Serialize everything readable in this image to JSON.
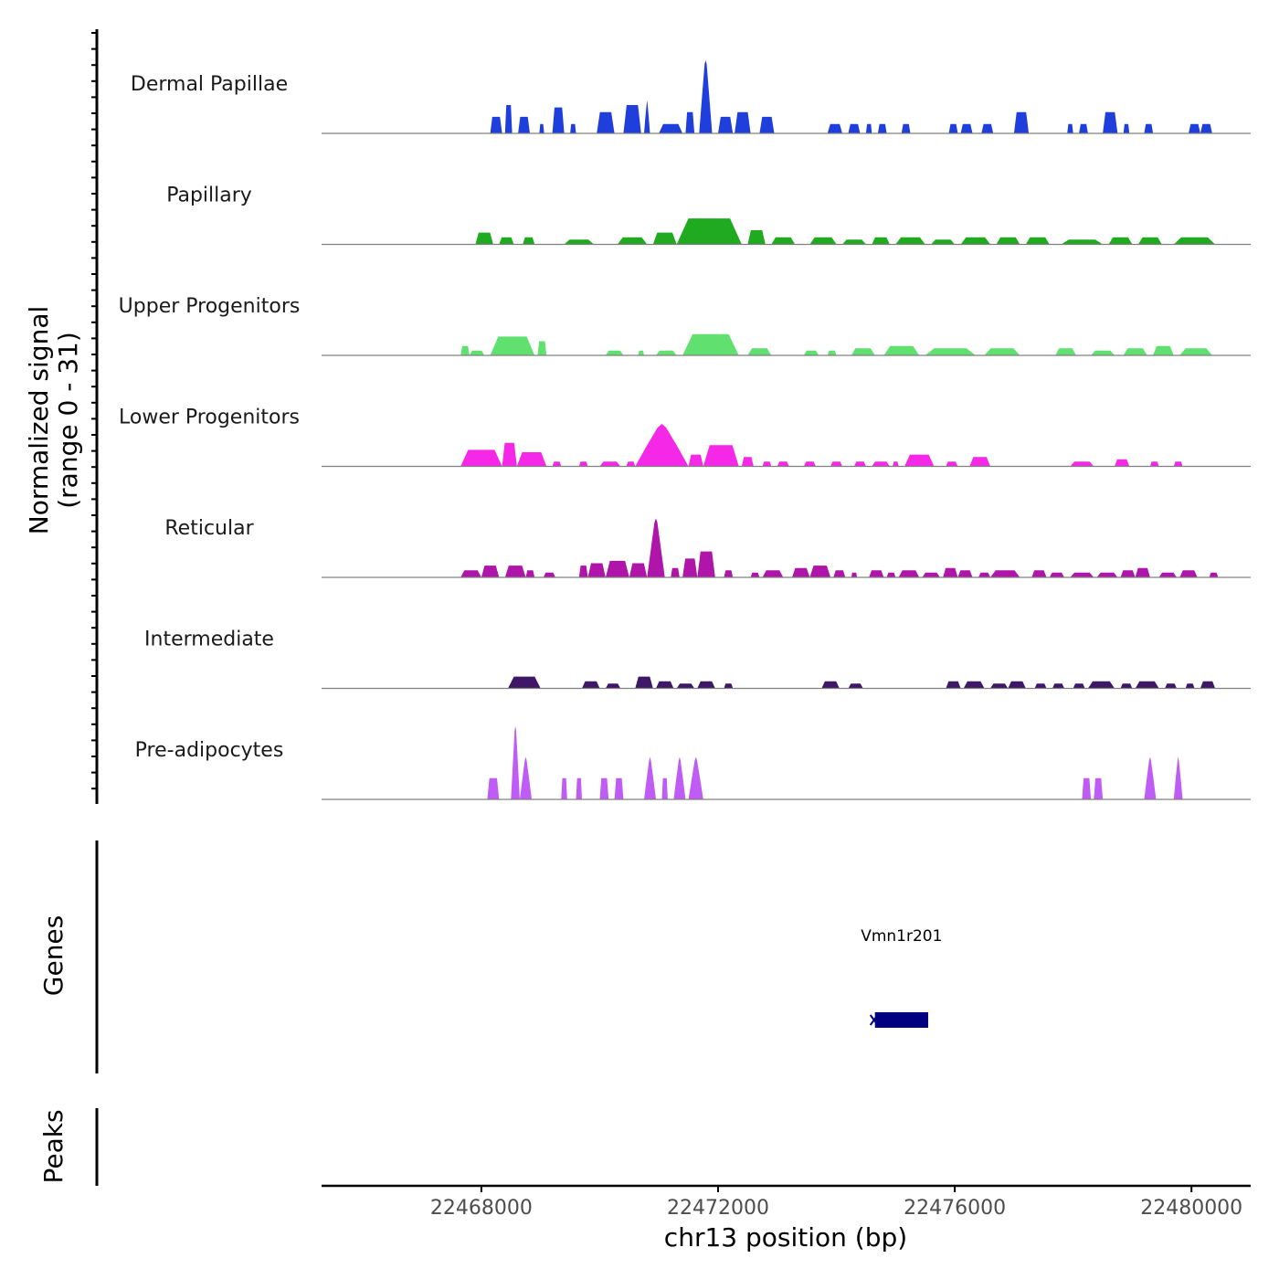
{
  "chart_data": {
    "type": "area",
    "title": "",
    "region": "chr13",
    "xlabel": "chr13 position (bp)",
    "ylabel_line1": "Normalized signal",
    "ylabel_line2": "(range 0 - 31)",
    "ylim": [
      0,
      31
    ],
    "xlim": [
      22465300,
      22481000
    ],
    "xticks": [
      22468000,
      22472000,
      22476000,
      22480000
    ],
    "xtick_labels": [
      "22468000",
      "22472000",
      "22476000",
      "22480000"
    ],
    "tracks": [
      {
        "name": "Dermal Papillae",
        "color": "#1f3fdc",
        "peaks": [
          [
            22468150,
            22468350,
            7
          ],
          [
            22468400,
            22468520,
            12
          ],
          [
            22468620,
            22468820,
            7
          ],
          [
            22468980,
            22469060,
            4
          ],
          [
            22469200,
            22469400,
            11
          ],
          [
            22469500,
            22469600,
            4
          ],
          [
            22469950,
            22470250,
            9
          ],
          [
            22470400,
            22470700,
            12
          ],
          [
            22470750,
            22470850,
            14
          ],
          [
            22471000,
            22471400,
            4
          ],
          [
            22471450,
            22471600,
            9
          ],
          [
            22471680,
            22471900,
            31
          ],
          [
            22472000,
            22472250,
            7
          ],
          [
            22472280,
            22472550,
            9
          ],
          [
            22472700,
            22472950,
            7
          ],
          [
            22473850,
            22474100,
            4
          ],
          [
            22474200,
            22474400,
            4
          ],
          [
            22474500,
            22474600,
            4
          ],
          [
            22474700,
            22474850,
            4
          ],
          [
            22475100,
            22475250,
            4
          ],
          [
            22475900,
            22476050,
            4
          ],
          [
            22476100,
            22476300,
            4
          ],
          [
            22476450,
            22476650,
            4
          ],
          [
            22477000,
            22477250,
            9
          ],
          [
            22477900,
            22478000,
            4
          ],
          [
            22478100,
            22478250,
            4
          ],
          [
            22478500,
            22478750,
            9
          ],
          [
            22478850,
            22478950,
            4
          ],
          [
            22479200,
            22479350,
            4
          ],
          [
            22479950,
            22480150,
            4
          ],
          [
            22480150,
            22480350,
            4
          ]
        ]
      },
      {
        "name": "Papillary",
        "color": "#1faa1f",
        "peaks": [
          [
            22467900,
            22468200,
            5
          ],
          [
            22468300,
            22468550,
            3
          ],
          [
            22468700,
            22468900,
            3
          ],
          [
            22469400,
            22469900,
            2
          ],
          [
            22470300,
            22470800,
            3
          ],
          [
            22470900,
            22471300,
            5
          ],
          [
            22471300,
            22472400,
            11
          ],
          [
            22472500,
            22472800,
            6
          ],
          [
            22472900,
            22473300,
            3
          ],
          [
            22473550,
            22474000,
            3
          ],
          [
            22474100,
            22474500,
            2
          ],
          [
            22474600,
            22474900,
            3
          ],
          [
            22475000,
            22475500,
            3
          ],
          [
            22475600,
            22476000,
            2
          ],
          [
            22476100,
            22476600,
            3
          ],
          [
            22476700,
            22477100,
            3
          ],
          [
            22477200,
            22477600,
            3
          ],
          [
            22477800,
            22478500,
            2
          ],
          [
            22478600,
            22479000,
            3
          ],
          [
            22479100,
            22479500,
            3
          ],
          [
            22479700,
            22480400,
            3
          ]
        ]
      },
      {
        "name": "Upper Progenitors",
        "color": "#5fe06f",
        "peaks": [
          [
            22467650,
            22467800,
            4
          ],
          [
            22467800,
            22468050,
            2
          ],
          [
            22468150,
            22468900,
            8
          ],
          [
            22468950,
            22469100,
            6
          ],
          [
            22470100,
            22470400,
            2
          ],
          [
            22470650,
            22470750,
            2
          ],
          [
            22470950,
            22471300,
            2
          ],
          [
            22471400,
            22472350,
            9
          ],
          [
            22472500,
            22472900,
            3
          ],
          [
            22473450,
            22473700,
            2
          ],
          [
            22473850,
            22474000,
            2
          ],
          [
            22474250,
            22474650,
            3
          ],
          [
            22474800,
            22475400,
            4
          ],
          [
            22475500,
            22476350,
            3
          ],
          [
            22476500,
            22477100,
            3
          ],
          [
            22477700,
            22478050,
            3
          ],
          [
            22478300,
            22478700,
            2
          ],
          [
            22478850,
            22479250,
            3
          ],
          [
            22479350,
            22479700,
            4
          ],
          [
            22479800,
            22480350,
            3
          ]
        ]
      },
      {
        "name": "Lower Progenitors",
        "color": "#f628e8",
        "peaks": [
          [
            22467650,
            22468350,
            7
          ],
          [
            22468350,
            22468600,
            10
          ],
          [
            22468600,
            22469100,
            6
          ],
          [
            22469200,
            22469350,
            2
          ],
          [
            22469650,
            22469800,
            2
          ],
          [
            22470000,
            22470350,
            2
          ],
          [
            22470450,
            22470600,
            2
          ],
          [
            22470600,
            22471500,
            18
          ],
          [
            22471500,
            22471750,
            5
          ],
          [
            22471750,
            22472350,
            9
          ],
          [
            22472400,
            22472600,
            4
          ],
          [
            22472750,
            22472900,
            2
          ],
          [
            22473000,
            22473200,
            2
          ],
          [
            22473450,
            22473650,
            2
          ],
          [
            22473900,
            22474100,
            2
          ],
          [
            22474300,
            22474500,
            2
          ],
          [
            22474600,
            22474900,
            2
          ],
          [
            22474950,
            22475050,
            2
          ],
          [
            22475150,
            22475650,
            5
          ],
          [
            22475850,
            22476050,
            2
          ],
          [
            22476250,
            22476600,
            4
          ],
          [
            22477950,
            22478350,
            2
          ],
          [
            22478700,
            22478950,
            3
          ],
          [
            22479300,
            22479450,
            2
          ],
          [
            22479700,
            22479850,
            2
          ]
        ]
      },
      {
        "name": "Reticular",
        "color": "#b015aa",
        "peaks": [
          [
            22467650,
            22468000,
            3
          ],
          [
            22468000,
            22468300,
            5
          ],
          [
            22468400,
            22468750,
            5
          ],
          [
            22468750,
            22468900,
            3
          ],
          [
            22469050,
            22469250,
            2
          ],
          [
            22469650,
            22469800,
            5
          ],
          [
            22469800,
            22470100,
            6
          ],
          [
            22470100,
            22470500,
            7
          ],
          [
            22470500,
            22470800,
            6
          ],
          [
            22470800,
            22471100,
            25
          ],
          [
            22471200,
            22471350,
            4
          ],
          [
            22471400,
            22471650,
            8
          ],
          [
            22471650,
            22471950,
            11
          ],
          [
            22472100,
            22472250,
            3
          ],
          [
            22472550,
            22472700,
            2
          ],
          [
            22472750,
            22473100,
            3
          ],
          [
            22473250,
            22473550,
            4
          ],
          [
            22473550,
            22473900,
            5
          ],
          [
            22473950,
            22474150,
            3
          ],
          [
            22474250,
            22474350,
            2
          ],
          [
            22474550,
            22474800,
            3
          ],
          [
            22474850,
            22475000,
            2
          ],
          [
            22475050,
            22475400,
            3
          ],
          [
            22475450,
            22475750,
            2
          ],
          [
            22475800,
            22476050,
            4
          ],
          [
            22476050,
            22476300,
            3
          ],
          [
            22476400,
            22476600,
            2
          ],
          [
            22476600,
            22477100,
            3
          ],
          [
            22477300,
            22477550,
            3
          ],
          [
            22477600,
            22477850,
            2
          ],
          [
            22477950,
            22478350,
            2
          ],
          [
            22478400,
            22478750,
            2
          ],
          [
            22478800,
            22479050,
            3
          ],
          [
            22479050,
            22479300,
            4
          ],
          [
            22479450,
            22479750,
            2
          ],
          [
            22479800,
            22480100,
            3
          ],
          [
            22480300,
            22480450,
            2
          ]
        ]
      },
      {
        "name": "Intermediate",
        "color": "#3e1766",
        "peaks": [
          [
            22468450,
            22469000,
            5
          ],
          [
            22469700,
            22470000,
            3
          ],
          [
            22470100,
            22470350,
            2
          ],
          [
            22470600,
            22470900,
            5
          ],
          [
            22470950,
            22471250,
            3
          ],
          [
            22471300,
            22471600,
            2
          ],
          [
            22471650,
            22471950,
            3
          ],
          [
            22472100,
            22472250,
            2
          ],
          [
            22473750,
            22474050,
            3
          ],
          [
            22474200,
            22474450,
            2
          ],
          [
            22475850,
            22476100,
            3
          ],
          [
            22476150,
            22476500,
            3
          ],
          [
            22476600,
            22476900,
            2
          ],
          [
            22476900,
            22477200,
            3
          ],
          [
            22477350,
            22477550,
            2
          ],
          [
            22477650,
            22477850,
            2
          ],
          [
            22478000,
            22478200,
            2
          ],
          [
            22478250,
            22478700,
            3
          ],
          [
            22478800,
            22479000,
            2
          ],
          [
            22479050,
            22479450,
            3
          ],
          [
            22479550,
            22479750,
            2
          ],
          [
            22479900,
            22480050,
            2
          ],
          [
            22480150,
            22480400,
            3
          ]
        ]
      },
      {
        "name": "Pre-adipocytes",
        "color": "#c05cf6",
        "peaks": [
          [
            22468100,
            22468300,
            9
          ],
          [
            22468500,
            22468650,
            31
          ],
          [
            22468650,
            22468850,
            18
          ],
          [
            22469350,
            22469450,
            9
          ],
          [
            22469600,
            22469700,
            9
          ],
          [
            22470000,
            22470150,
            9
          ],
          [
            22470250,
            22470400,
            9
          ],
          [
            22470750,
            22470950,
            18
          ],
          [
            22471050,
            22471150,
            9
          ],
          [
            22471250,
            22471450,
            18
          ],
          [
            22471500,
            22471750,
            18
          ],
          [
            22478150,
            22478300,
            9
          ],
          [
            22478350,
            22478500,
            9
          ],
          [
            22479200,
            22479400,
            18
          ],
          [
            22479700,
            22479850,
            18
          ]
        ]
      }
    ],
    "genes": [
      {
        "name": "Vmn1r201",
        "start": 22474650,
        "end": 22475550,
        "strand": "-"
      }
    ],
    "panels": {
      "genes": "Genes",
      "peaks": "Peaks"
    }
  },
  "colors": {
    "gene": "#000080",
    "baseline": "#808080",
    "axis": "#000000"
  }
}
